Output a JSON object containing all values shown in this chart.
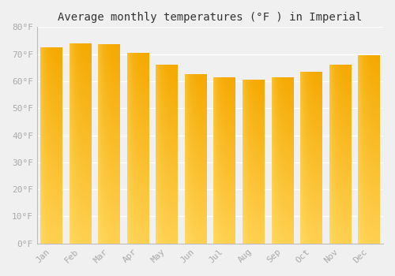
{
  "title": "Average monthly temperatures (°F ) in Imperial",
  "months": [
    "Jan",
    "Feb",
    "Mar",
    "Apr",
    "May",
    "Jun",
    "Jul",
    "Aug",
    "Sep",
    "Oct",
    "Nov",
    "Dec"
  ],
  "values": [
    72.5,
    74.0,
    73.5,
    70.5,
    66.0,
    62.5,
    61.5,
    60.5,
    61.5,
    63.5,
    66.0,
    69.5
  ],
  "bar_color_top": "#F5A800",
  "bar_color_mid": "#FFBB00",
  "bar_color_bottom": "#FFD060",
  "bar_color_left": "#FFD060",
  "ylim": [
    0,
    80
  ],
  "yticks": [
    0,
    10,
    20,
    30,
    40,
    50,
    60,
    70,
    80
  ],
  "ytick_labels": [
    "0°F",
    "10°F",
    "20°F",
    "30°F",
    "40°F",
    "50°F",
    "60°F",
    "70°F",
    "80°F"
  ],
  "background_color": "#f0f0f0",
  "grid_color": "#ffffff",
  "title_fontsize": 10,
  "tick_fontsize": 8,
  "title_font": "monospace",
  "bar_width": 0.75
}
